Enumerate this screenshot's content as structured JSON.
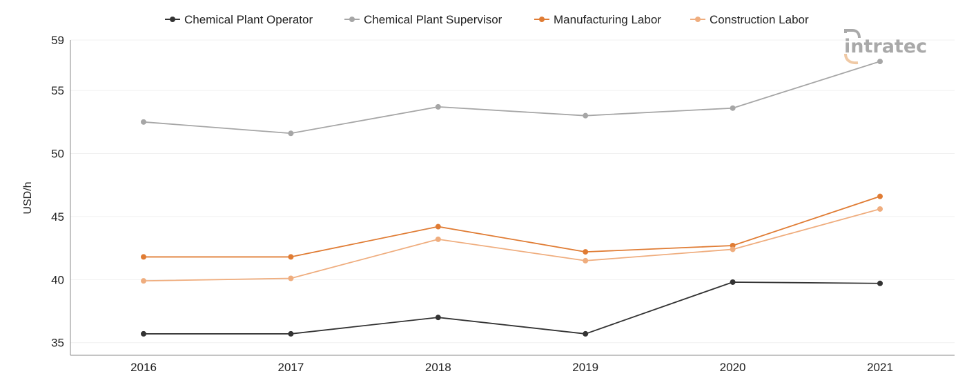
{
  "chart_data": {
    "type": "line",
    "title": "",
    "xlabel": "",
    "ylabel": "USD/h",
    "categories": [
      "2016",
      "2017",
      "2018",
      "2019",
      "2020",
      "2021"
    ],
    "yticks": [
      35,
      40,
      45,
      50,
      55,
      59
    ],
    "ylim": [
      34,
      59
    ],
    "grid": true,
    "legend_position": "top-center",
    "series": [
      {
        "name": "Chemical Plant Operator",
        "color": "#333333",
        "values": [
          35.7,
          35.7,
          37.0,
          35.7,
          39.8,
          39.7
        ]
      },
      {
        "name": "Chemical Plant Supervisor",
        "color": "#a6a6a6",
        "values": [
          52.5,
          51.6,
          53.7,
          53.0,
          53.6,
          57.3
        ]
      },
      {
        "name": "Manufacturing Labor",
        "color": "#e07c34",
        "values": [
          41.8,
          41.8,
          44.2,
          42.2,
          42.7,
          46.6
        ]
      },
      {
        "name": "Construction Labor",
        "color": "#efad7e",
        "values": [
          39.9,
          40.1,
          43.2,
          41.5,
          42.4,
          45.6
        ]
      }
    ]
  },
  "branding": {
    "logo": "intratec",
    "logo_color": "#a9a9a9",
    "logo_accent_color": "#efc9a5"
  }
}
